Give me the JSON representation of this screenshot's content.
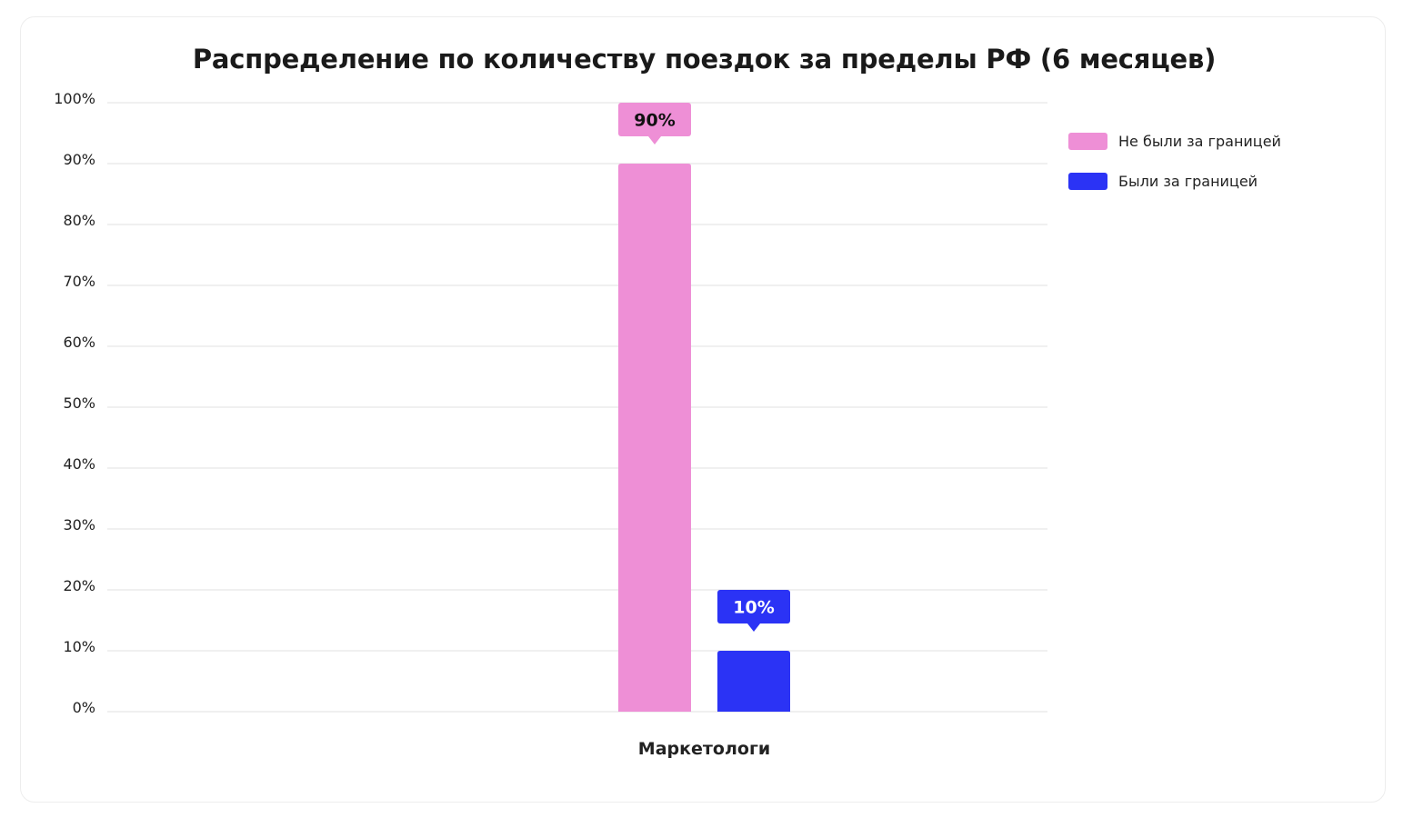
{
  "chart_data": {
    "type": "bar",
    "title": "Распределение по количеству поездок за пределы РФ (6 месяцев)",
    "categories": [
      "Маркетологи"
    ],
    "series": [
      {
        "name": "Не были за границей",
        "values": [
          90
        ],
        "color": "#ee8fd6"
      },
      {
        "name": "Были за границей",
        "values": [
          10
        ],
        "color": "#2b33f5"
      }
    ],
    "data_labels": [
      "90%",
      "10%"
    ],
    "y_ticks": [
      "0%",
      "10%",
      "20%",
      "30%",
      "40%",
      "50%",
      "60%",
      "70%",
      "80%",
      "90%",
      "100%"
    ],
    "ylim": [
      0,
      100
    ],
    "xlabel": "",
    "ylabel": "",
    "grid": true,
    "legend_position": "top-right"
  }
}
